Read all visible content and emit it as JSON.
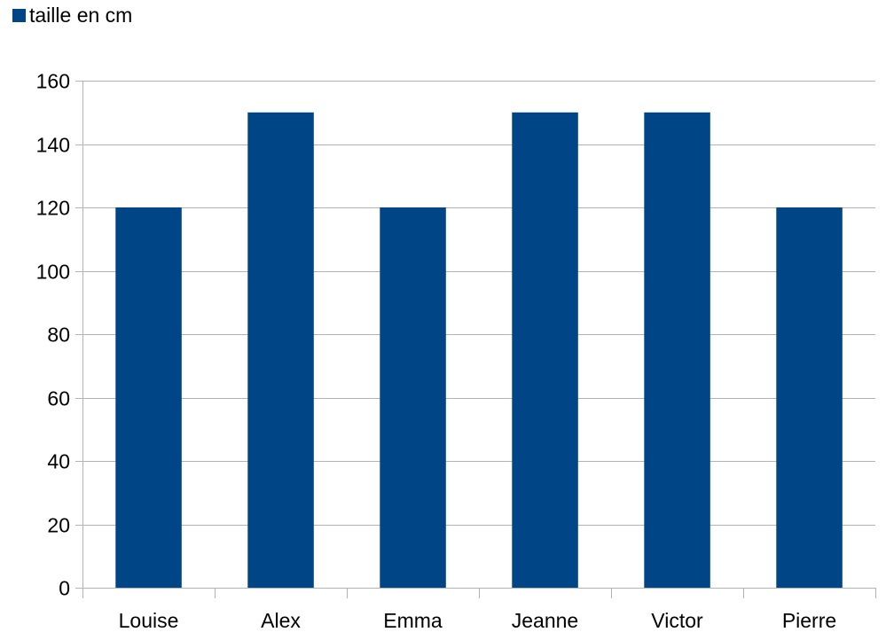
{
  "chart_data": {
    "type": "bar",
    "categories": [
      "Louise",
      "Alex",
      "Emma",
      "Jeanne",
      "Victor",
      "Pierre"
    ],
    "series": [
      {
        "name": "taille en cm",
        "values": [
          120,
          150,
          120,
          150,
          150,
          120
        ],
        "color": "#004586"
      }
    ],
    "y_ticks": [
      "0",
      "20",
      "40",
      "60",
      "80",
      "100",
      "120",
      "140",
      "160"
    ],
    "ylim": [
      0,
      160
    ],
    "grid": true,
    "legend_position": "top-left",
    "colors": {
      "bar": "#004586",
      "grid": "#b3b3b3",
      "axis": "#b3b3b3",
      "text": "#000000"
    }
  }
}
